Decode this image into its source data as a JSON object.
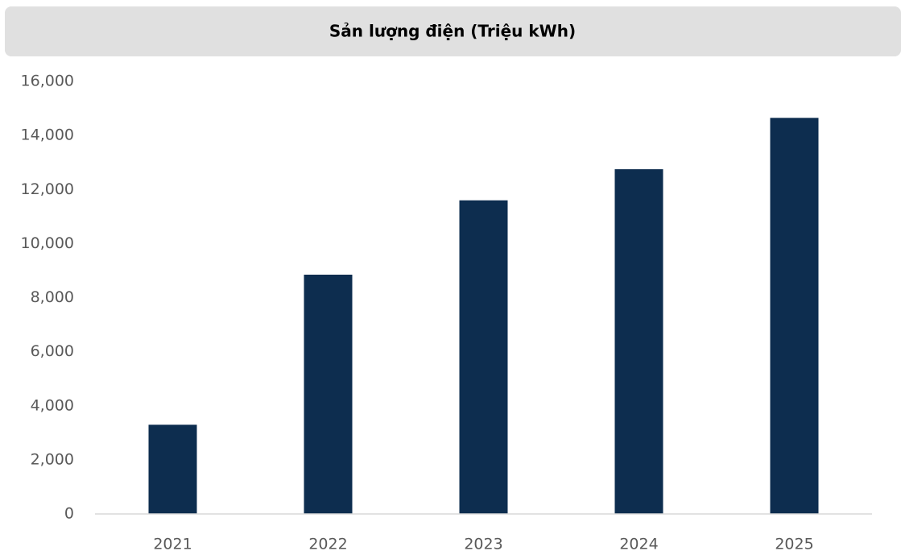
{
  "chart_data": {
    "type": "bar",
    "title": "Sản lượng điện (Triệu kWh)",
    "categories": [
      "2021",
      "2022",
      "2023",
      "2024",
      "2025"
    ],
    "values": [
      3300,
      8850,
      11600,
      12750,
      14650
    ],
    "color": "#0d2d4f",
    "ylim": [
      0,
      16000
    ],
    "yticks": [
      0,
      {
        "value": 2000,
        "label": "2,000"
      },
      {
        "value": 4000,
        "label": "4,000"
      },
      {
        "value": 6000,
        "label": "6,000"
      },
      {
        "value": 8000,
        "label": "8,000"
      },
      {
        "value": 10000,
        "label": "10,000"
      },
      {
        "value": 12000,
        "label": "12,000"
      },
      {
        "value": 14000,
        "label": "14,000"
      },
      {
        "value": 16000,
        "label": "16,000"
      }
    ],
    "grid": false
  }
}
